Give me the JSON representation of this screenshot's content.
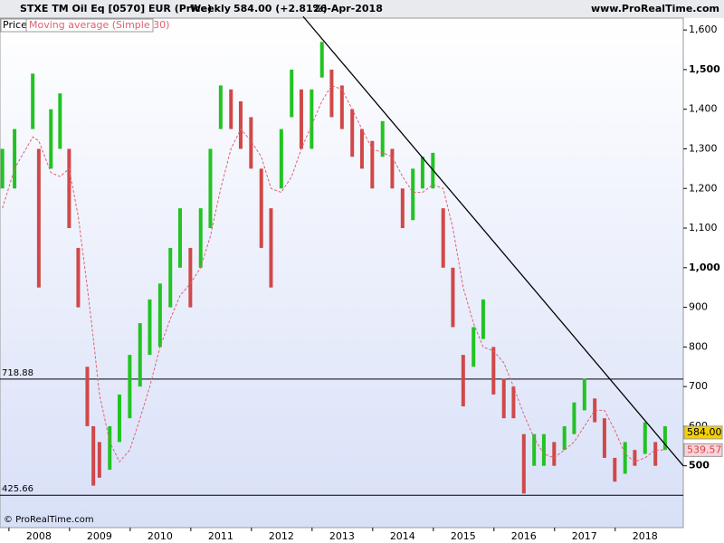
{
  "chart_data": {
    "type": "range_bar",
    "header": {
      "instrument": "STXE TM Oil Eq [0570] EUR (Price)",
      "period": "Weekly",
      "quote": "584.00 (+2.81%)",
      "date": "26-Apr-2018",
      "site": "www.ProRealTime.com"
    },
    "copyright": "© ProRealTime.com",
    "x": [
      2007.4,
      2007.6,
      2007.9,
      2008.0,
      2008.2,
      2008.35,
      2008.5,
      2008.65,
      2008.8,
      2008.9,
      2009.0,
      2009.17,
      2009.33,
      2009.5,
      2009.67,
      2009.83,
      2010.0,
      2010.17,
      2010.33,
      2010.5,
      2010.67,
      2010.83,
      2011.0,
      2011.17,
      2011.33,
      2011.5,
      2011.67,
      2011.83,
      2012.0,
      2012.17,
      2012.33,
      2012.5,
      2012.67,
      2012.83,
      2013.0,
      2013.17,
      2013.33,
      2013.5,
      2013.67,
      2013.83,
      2014.0,
      2014.17,
      2014.33,
      2014.5,
      2014.67,
      2014.83,
      2015.0,
      2015.17,
      2015.33,
      2015.5,
      2015.67,
      2015.83,
      2016.0,
      2016.17,
      2016.33,
      2016.5,
      2016.67,
      2016.83,
      2017.0,
      2017.17,
      2017.33,
      2017.5,
      2017.67,
      2017.83,
      2018.0,
      2018.17,
      2018.33
    ],
    "series": [
      {
        "name": "Price",
        "up_color": "#22c322",
        "down_color": "#d04848",
        "high": [
          1300,
          1350,
          1490,
          1300,
          1400,
          1440,
          1300,
          1050,
          750,
          600,
          560,
          600,
          680,
          780,
          860,
          920,
          960,
          1050,
          1150,
          1050,
          1150,
          1300,
          1460,
          1450,
          1420,
          1380,
          1250,
          1150,
          1350,
          1500,
          1450,
          1450,
          1570,
          1500,
          1460,
          1400,
          1350,
          1320,
          1370,
          1300,
          1200,
          1250,
          1280,
          1290,
          1150,
          1000,
          780,
          850,
          920,
          800,
          720,
          700,
          580,
          580,
          580,
          560,
          600,
          660,
          720,
          670,
          620,
          520,
          560,
          540,
          610,
          560,
          600
        ],
        "low": [
          1200,
          1200,
          1350,
          950,
          1250,
          1300,
          1100,
          900,
          600,
          450,
          470,
          490,
          560,
          620,
          700,
          780,
          800,
          900,
          1000,
          900,
          1000,
          1100,
          1350,
          1350,
          1300,
          1250,
          1050,
          950,
          1200,
          1380,
          1300,
          1300,
          1480,
          1380,
          1350,
          1280,
          1250,
          1200,
          1280,
          1200,
          1100,
          1120,
          1200,
          1200,
          1000,
          850,
          650,
          750,
          820,
          680,
          620,
          620,
          430,
          500,
          500,
          500,
          540,
          580,
          640,
          610,
          520,
          460,
          480,
          500,
          530,
          500,
          540
        ]
      },
      {
        "name": "Moving average (Simple 30)",
        "color": "#e06070",
        "values": [
          1150,
          1250,
          1330,
          1320,
          1240,
          1230,
          1250,
          1130,
          950,
          820,
          680,
          560,
          510,
          540,
          620,
          700,
          800,
          870,
          930,
          960,
          1000,
          1080,
          1200,
          1300,
          1350,
          1320,
          1280,
          1200,
          1190,
          1230,
          1300,
          1360,
          1420,
          1460,
          1450,
          1400,
          1350,
          1300,
          1290,
          1280,
          1230,
          1190,
          1190,
          1210,
          1200,
          1100,
          950,
          860,
          800,
          790,
          760,
          700,
          630,
          570,
          530,
          520,
          540,
          560,
          600,
          640,
          640,
          590,
          530,
          510,
          520,
          540,
          540
        ]
      }
    ],
    "trendline": {
      "x": [
        2012.36,
        2018.63
      ],
      "values": [
        1634,
        500
      ],
      "color": "#000000"
    },
    "hlines": [
      718.88,
      425.66
    ],
    "price_tags": [
      {
        "value": 584,
        "label": "584.00",
        "color": "#f5d100"
      },
      {
        "value": 539.57,
        "label": "539.57",
        "color": "#fbd3da"
      }
    ],
    "xlim": [
      2007.36,
      2018.63
    ],
    "xticks": [
      2008,
      2009,
      2010,
      2011,
      2012,
      2013,
      2014,
      2015,
      2016,
      2017,
      2018
    ],
    "ylim": [
      344,
      1630
    ],
    "yticks": [
      500,
      600,
      700,
      800,
      900,
      {
        "value": 1000,
        "label": "1,000"
      },
      {
        "value": 1100,
        "label": "1,100"
      },
      {
        "value": 1200,
        "label": "1,200"
      },
      {
        "value": 1300,
        "label": "1,300"
      },
      {
        "value": 1400,
        "label": "1,400"
      },
      {
        "value": 1500,
        "label": "1,500"
      },
      {
        "value": 1600,
        "label": "1,600"
      }
    ]
  }
}
